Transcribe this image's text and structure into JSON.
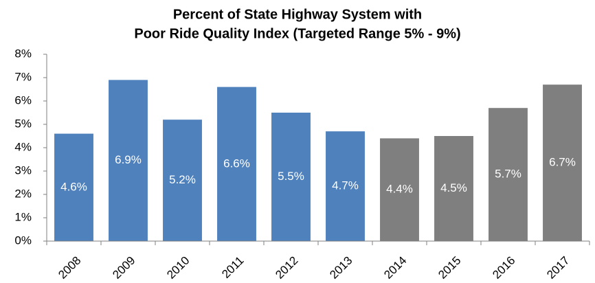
{
  "chart_data": {
    "type": "bar",
    "title": [
      "Percent of State Highway System with",
      "Poor Ride Quality Index (Targeted Range 5% - 9%)"
    ],
    "categories": [
      "2008",
      "2009",
      "2010",
      "2011",
      "2012",
      "2013",
      "2014",
      "2015",
      "2016",
      "2017"
    ],
    "values": [
      4.6,
      6.9,
      5.2,
      6.6,
      5.5,
      4.7,
      4.4,
      4.5,
      5.7,
      6.7
    ],
    "value_labels": [
      "4.6%",
      "6.9%",
      "5.2%",
      "6.6%",
      "5.5%",
      "4.7%",
      "4.4%",
      "4.5%",
      "5.7%",
      "6.7%"
    ],
    "colors": [
      "#4f81bd",
      "#4f81bd",
      "#4f81bd",
      "#4f81bd",
      "#4f81bd",
      "#4f81bd",
      "#7f7f7f",
      "#7f7f7f",
      "#7f7f7f",
      "#7f7f7f"
    ],
    "ylim": [
      0,
      8
    ],
    "yticks": [
      {
        "value": 0,
        "label": "0%"
      },
      {
        "value": 1,
        "label": "1%"
      },
      {
        "value": 2,
        "label": "2%"
      },
      {
        "value": 3,
        "label": "3%"
      },
      {
        "value": 4,
        "label": "4%"
      },
      {
        "value": 5,
        "label": "5%"
      },
      {
        "value": 6,
        "label": "6%"
      },
      {
        "value": 7,
        "label": "7%"
      },
      {
        "value": 8,
        "label": "8%"
      }
    ],
    "grid": false
  }
}
